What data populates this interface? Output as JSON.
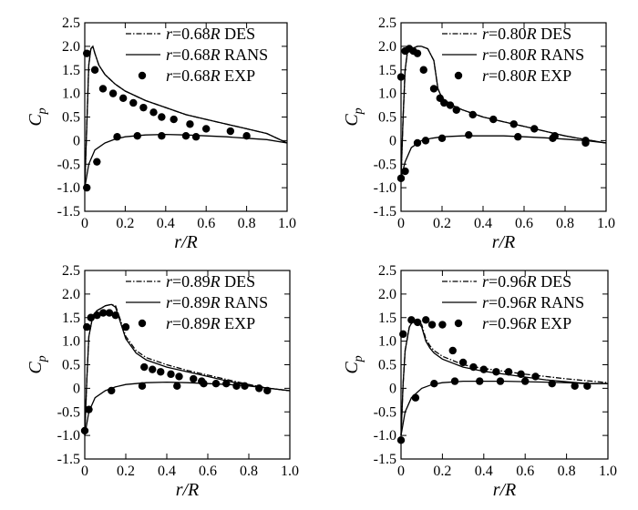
{
  "chart_data": [
    {
      "type": "line",
      "panel": "top-left",
      "title": "",
      "xlabel": "r/R",
      "ylabel": "Cp",
      "xlim": [
        0,
        1.0
      ],
      "ylim": [
        -1.5,
        2.5
      ],
      "xticks": [
        "0",
        "0.2",
        "0.4",
        "0.6",
        "0.8",
        "1.0"
      ],
      "yticks": [
        "-1.5",
        "-1.0",
        "-0.5",
        "0",
        "0.5",
        "1.0",
        "1.5",
        "2.0",
        "2.5"
      ],
      "legend_position": "top-right",
      "series": [
        {
          "name": "r=0.68R DES",
          "style": "dashdot",
          "x": [
            0,
            0.01,
            0.02,
            0.03,
            0.04,
            0.05,
            0.07,
            0.1,
            0.15,
            0.2,
            0.3,
            0.4,
            0.5,
            0.6,
            0.7,
            0.8,
            0.9,
            1.0
          ],
          "y": [
            -1.0,
            0.3,
            1.6,
            1.95,
            2.0,
            1.85,
            1.6,
            1.4,
            1.2,
            1.05,
            0.85,
            0.7,
            0.55,
            0.45,
            0.35,
            0.25,
            0.15,
            -0.05
          ]
        },
        {
          "name": "r=0.68R RANS",
          "style": "solid",
          "x": [
            0,
            0.01,
            0.02,
            0.03,
            0.04,
            0.05,
            0.07,
            0.1,
            0.15,
            0.2,
            0.3,
            0.4,
            0.5,
            0.6,
            0.7,
            0.8,
            0.9,
            1.0
          ],
          "y": [
            -1.0,
            0.3,
            1.6,
            1.95,
            2.0,
            1.85,
            1.6,
            1.4,
            1.2,
            1.05,
            0.85,
            0.7,
            0.55,
            0.45,
            0.35,
            0.25,
            0.15,
            -0.05
          ]
        },
        {
          "name": "r=0.68R RANS lower",
          "style": "solid",
          "legend": false,
          "x": [
            0,
            0.02,
            0.05,
            0.1,
            0.15,
            0.2,
            0.3,
            0.4,
            0.5,
            0.6,
            0.7,
            0.8,
            0.9,
            1.0
          ],
          "y": [
            -1.0,
            -0.5,
            -0.2,
            -0.05,
            0.03,
            0.08,
            0.12,
            0.13,
            0.12,
            0.1,
            0.08,
            0.05,
            0.02,
            -0.05
          ]
        },
        {
          "name": "r=0.68R EXP",
          "style": "marker",
          "x": [
            0.01,
            0.05,
            0.09,
            0.14,
            0.19,
            0.24,
            0.29,
            0.34,
            0.38,
            0.44,
            0.52,
            0.6,
            0.72,
            0.8,
            0.01,
            0.06,
            0.16,
            0.26,
            0.38,
            0.5,
            0.55
          ],
          "y": [
            1.85,
            1.5,
            1.1,
            1.0,
            0.9,
            0.8,
            0.7,
            0.6,
            0.5,
            0.45,
            0.35,
            0.25,
            0.2,
            0.1,
            -1.0,
            -0.45,
            0.08,
            0.1,
            0.1,
            0.1,
            0.08
          ]
        }
      ]
    },
    {
      "type": "line",
      "panel": "top-right",
      "title": "",
      "xlabel": "r/R",
      "ylabel": "Cp",
      "xlim": [
        0,
        1.0
      ],
      "ylim": [
        -1.5,
        2.5
      ],
      "xticks": [
        "0",
        "0.2",
        "0.4",
        "0.6",
        "0.8",
        "1.0"
      ],
      "yticks": [
        "-1.5",
        "-1.0",
        "-0.5",
        "0",
        "0.5",
        "1.0",
        "1.5",
        "2.0",
        "2.5"
      ],
      "legend_position": "top-right",
      "series": [
        {
          "name": "r=0.80R DES",
          "style": "dashdot",
          "x": [
            0,
            0.01,
            0.02,
            0.03,
            0.05,
            0.08,
            0.1,
            0.13,
            0.16,
            0.18,
            0.2,
            0.25,
            0.3,
            0.4,
            0.5,
            0.6,
            0.7,
            0.8,
            0.9,
            1.0
          ],
          "y": [
            -0.8,
            0.5,
            1.5,
            1.85,
            1.95,
            2.0,
            2.0,
            1.95,
            1.7,
            1.1,
            0.9,
            0.75,
            0.65,
            0.5,
            0.4,
            0.3,
            0.2,
            0.1,
            0.02,
            -0.05
          ]
        },
        {
          "name": "r=0.80R RANS",
          "style": "solid",
          "x": [
            0,
            0.01,
            0.02,
            0.03,
            0.05,
            0.08,
            0.1,
            0.13,
            0.16,
            0.18,
            0.2,
            0.25,
            0.3,
            0.4,
            0.5,
            0.6,
            0.7,
            0.8,
            0.9,
            1.0
          ],
          "y": [
            -0.8,
            0.5,
            1.5,
            1.85,
            1.95,
            2.0,
            2.0,
            1.95,
            1.7,
            1.1,
            0.9,
            0.75,
            0.65,
            0.5,
            0.4,
            0.3,
            0.2,
            0.1,
            0.02,
            -0.05
          ]
        },
        {
          "name": "r=0.80R RANS lower",
          "style": "solid",
          "legend": false,
          "x": [
            0,
            0.02,
            0.05,
            0.1,
            0.15,
            0.2,
            0.3,
            0.4,
            0.5,
            0.6,
            0.7,
            0.8,
            0.9,
            1.0
          ],
          "y": [
            -0.8,
            -0.45,
            -0.15,
            0.0,
            0.05,
            0.08,
            0.1,
            0.1,
            0.1,
            0.08,
            0.06,
            0.03,
            0.0,
            -0.05
          ]
        },
        {
          "name": "r=0.80R EXP",
          "style": "marker",
          "x": [
            0.0,
            0.02,
            0.04,
            0.06,
            0.08,
            0.11,
            0.16,
            0.19,
            0.21,
            0.24,
            0.27,
            0.35,
            0.45,
            0.55,
            0.65,
            0.75,
            0.9,
            0.0,
            0.02,
            0.08,
            0.12,
            0.2,
            0.33,
            0.57,
            0.74,
            0.9
          ],
          "y": [
            1.35,
            1.9,
            1.95,
            1.9,
            1.85,
            1.5,
            1.1,
            0.9,
            0.8,
            0.75,
            0.65,
            0.55,
            0.45,
            0.35,
            0.25,
            0.1,
            -0.05,
            -0.8,
            -0.65,
            -0.05,
            0.0,
            0.05,
            0.12,
            0.08,
            0.05,
            0.0
          ]
        }
      ]
    },
    {
      "type": "line",
      "panel": "bottom-left",
      "title": "",
      "xlabel": "r/R",
      "ylabel": "Cp",
      "xlim": [
        0,
        1.0
      ],
      "ylim": [
        -1.5,
        2.5
      ],
      "xticks": [
        "0",
        "0.2",
        "0.4",
        "0.6",
        "0.8",
        "1.0"
      ],
      "yticks": [
        "-1.5",
        "-1.0",
        "-0.5",
        "0",
        "0.5",
        "1.0",
        "1.5",
        "2.0",
        "2.5"
      ],
      "legend_position": "top-right",
      "series": [
        {
          "name": "r=0.89R DES",
          "style": "dashdot",
          "x": [
            0,
            0.01,
            0.02,
            0.04,
            0.06,
            0.08,
            0.1,
            0.13,
            0.15,
            0.17,
            0.2,
            0.25,
            0.3,
            0.4,
            0.5,
            0.6,
            0.7,
            0.8,
            0.9,
            1.0
          ],
          "y": [
            -1.0,
            0.2,
            1.1,
            1.55,
            1.65,
            1.7,
            1.75,
            1.78,
            1.75,
            1.5,
            1.1,
            0.8,
            0.65,
            0.5,
            0.38,
            0.28,
            0.18,
            0.08,
            0.0,
            -0.05
          ]
        },
        {
          "name": "r=0.89R RANS",
          "style": "solid",
          "x": [
            0,
            0.01,
            0.02,
            0.04,
            0.06,
            0.08,
            0.1,
            0.13,
            0.15,
            0.17,
            0.2,
            0.25,
            0.3,
            0.4,
            0.5,
            0.6,
            0.7,
            0.8,
            0.9,
            1.0
          ],
          "y": [
            -1.0,
            0.2,
            1.1,
            1.55,
            1.65,
            1.7,
            1.75,
            1.78,
            1.72,
            1.45,
            1.05,
            0.75,
            0.6,
            0.45,
            0.35,
            0.25,
            0.15,
            0.06,
            0.0,
            -0.05
          ]
        },
        {
          "name": "r=0.89R RANS lower",
          "style": "solid",
          "legend": false,
          "x": [
            0,
            0.02,
            0.05,
            0.1,
            0.15,
            0.2,
            0.3,
            0.4,
            0.5,
            0.6,
            0.7,
            0.8,
            0.9,
            1.0
          ],
          "y": [
            -1.0,
            -0.5,
            -0.2,
            -0.05,
            0.03,
            0.08,
            0.12,
            0.13,
            0.12,
            0.1,
            0.08,
            0.05,
            0.0,
            -0.05
          ]
        },
        {
          "name": "r=0.89R EXP",
          "style": "marker",
          "x": [
            0.01,
            0.03,
            0.06,
            0.09,
            0.12,
            0.15,
            0.2,
            0.29,
            0.33,
            0.37,
            0.42,
            0.46,
            0.53,
            0.57,
            0.64,
            0.69,
            0.74,
            0.78,
            0.85,
            0.89,
            0.0,
            0.02,
            0.13,
            0.28,
            0.45,
            0.58
          ],
          "y": [
            1.3,
            1.5,
            1.55,
            1.6,
            1.6,
            1.55,
            1.3,
            0.45,
            0.4,
            0.35,
            0.3,
            0.25,
            0.2,
            0.15,
            0.1,
            0.1,
            0.05,
            0.05,
            0.0,
            -0.05,
            -0.9,
            -0.45,
            -0.05,
            0.05,
            0.05,
            0.1
          ]
        }
      ]
    },
    {
      "type": "line",
      "panel": "bottom-right",
      "title": "",
      "xlabel": "r/R",
      "ylabel": "Cp",
      "xlim": [
        0,
        1.0
      ],
      "ylim": [
        -1.5,
        2.5
      ],
      "xticks": [
        "0",
        "0.2",
        "0.4",
        "0.6",
        "0.8",
        "1.0"
      ],
      "yticks": [
        "-1.5",
        "-1.0",
        "-0.5",
        "0",
        "0.5",
        "1.0",
        "1.5",
        "2.0",
        "2.5"
      ],
      "legend_position": "top-right",
      "series": [
        {
          "name": "r=0.96R DES",
          "style": "dashdot",
          "x": [
            0,
            0.01,
            0.02,
            0.04,
            0.06,
            0.08,
            0.1,
            0.12,
            0.14,
            0.16,
            0.2,
            0.3,
            0.4,
            0.5,
            0.6,
            0.7,
            0.8,
            0.9,
            1.0
          ],
          "y": [
            -1.0,
            0.1,
            0.8,
            1.3,
            1.45,
            1.45,
            1.35,
            1.05,
            0.9,
            0.8,
            0.68,
            0.5,
            0.42,
            0.36,
            0.3,
            0.25,
            0.2,
            0.16,
            0.12
          ]
        },
        {
          "name": "r=0.96R RANS",
          "style": "solid",
          "x": [
            0,
            0.01,
            0.02,
            0.04,
            0.06,
            0.08,
            0.1,
            0.12,
            0.14,
            0.16,
            0.2,
            0.3,
            0.4,
            0.5,
            0.6,
            0.7,
            0.8,
            0.9,
            1.0
          ],
          "y": [
            -1.0,
            0.1,
            0.8,
            1.3,
            1.45,
            1.42,
            1.3,
            1.0,
            0.85,
            0.75,
            0.62,
            0.45,
            0.36,
            0.3,
            0.24,
            0.18,
            0.14,
            0.1,
            0.1
          ]
        },
        {
          "name": "r=0.96R RANS lower",
          "style": "solid",
          "legend": false,
          "x": [
            0,
            0.02,
            0.05,
            0.1,
            0.15,
            0.2,
            0.3,
            0.4,
            0.5,
            0.6,
            0.7,
            0.8,
            0.9,
            1.0
          ],
          "y": [
            -1.0,
            -0.5,
            -0.2,
            0.0,
            0.08,
            0.12,
            0.15,
            0.15,
            0.15,
            0.14,
            0.13,
            0.12,
            0.1,
            0.1
          ]
        },
        {
          "name": "r=0.96R EXP",
          "style": "marker",
          "x": [
            0.01,
            0.05,
            0.08,
            0.12,
            0.15,
            0.2,
            0.25,
            0.3,
            0.35,
            0.4,
            0.46,
            0.52,
            0.58,
            0.65,
            0.73,
            0.84,
            0.9,
            0.0,
            0.07,
            0.16,
            0.26,
            0.38,
            0.48,
            0.6
          ],
          "y": [
            1.15,
            1.45,
            1.4,
            1.45,
            1.35,
            1.35,
            0.8,
            0.55,
            0.45,
            0.4,
            0.35,
            0.35,
            0.3,
            0.25,
            0.1,
            0.05,
            0.05,
            -1.1,
            -0.2,
            0.1,
            0.15,
            0.15,
            0.15,
            0.15
          ]
        }
      ]
    }
  ]
}
